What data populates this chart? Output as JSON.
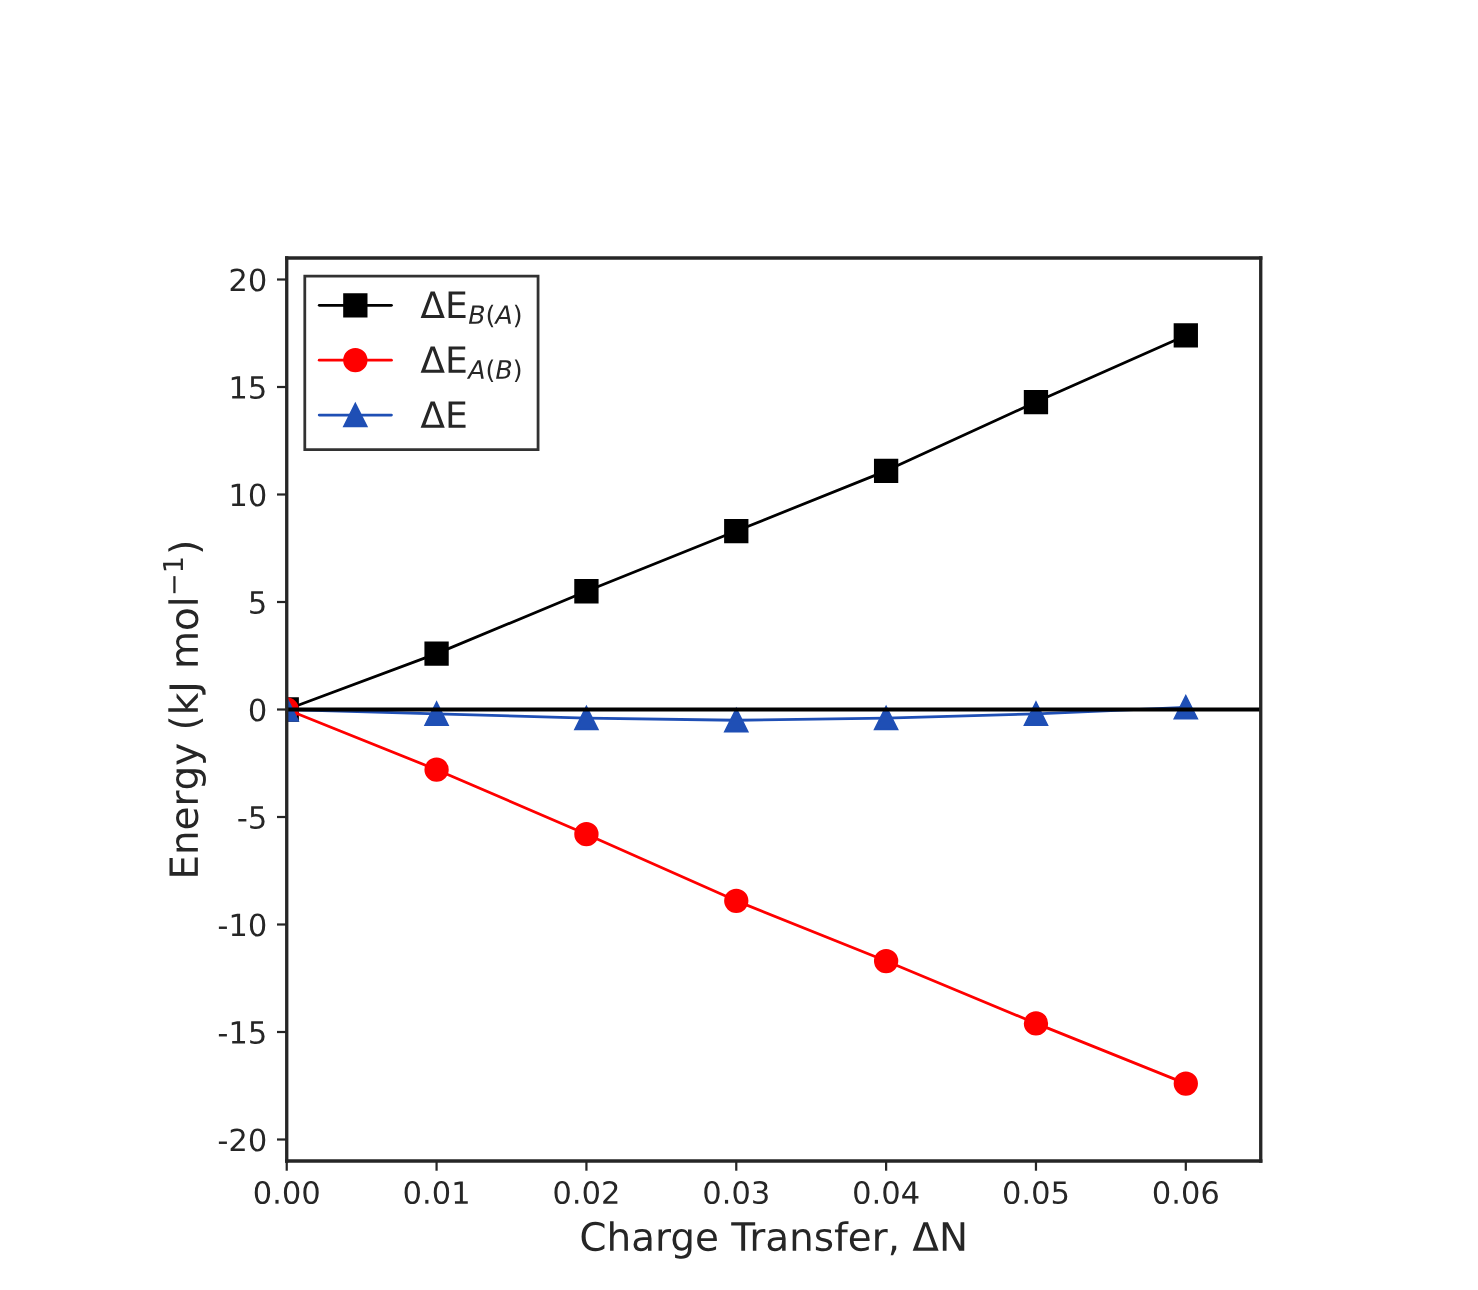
{
  "chart_data": {
    "type": "line",
    "xlabel": "Charge Transfer, ΔN",
    "ylabel": "Energy (kJ mol$^{−1}$)",
    "x": [
      0,
      0.01,
      0.02,
      0.03,
      0.04,
      0.05,
      0.06
    ],
    "series": [
      {
        "name": "ΔE$_{B(A)}$",
        "color": "#000000",
        "marker": "square",
        "values": [
          0,
          2.6,
          5.5,
          8.3,
          11.1,
          14.3,
          17.4
        ]
      },
      {
        "name": "ΔE$_{A(B)}$",
        "color": "#ff0000",
        "marker": "circle",
        "values": [
          0,
          -2.8,
          -5.8,
          -8.9,
          -11.7,
          -14.6,
          -17.4
        ]
      },
      {
        "name": "ΔE",
        "color": "#1f4fb5",
        "marker": "triangle",
        "values": [
          0,
          -0.2,
          -0.4,
          -0.5,
          -0.4,
          -0.2,
          0.1
        ]
      }
    ],
    "xlim": [
      0,
      0.065
    ],
    "xticks": [
      {
        "value": 0,
        "label": "0.00"
      },
      {
        "value": 0.01,
        "label": "0.01"
      },
      {
        "value": 0.02,
        "label": "0.02"
      },
      {
        "value": 0.03,
        "label": "0.03"
      },
      {
        "value": 0.04,
        "label": "0.04"
      },
      {
        "value": 0.05,
        "label": "0.05"
      },
      {
        "value": 0.06,
        "label": "0.06"
      }
    ],
    "ylim": [
      -21,
      21
    ],
    "yticks": [
      -20,
      -15,
      -10,
      -5,
      0,
      5,
      10,
      15,
      20
    ],
    "ref_lines": [
      {
        "axis": "y",
        "value": 0,
        "color": "#000000"
      }
    ],
    "legend": "top left",
    "grid": false,
    "line_style": "solid"
  }
}
